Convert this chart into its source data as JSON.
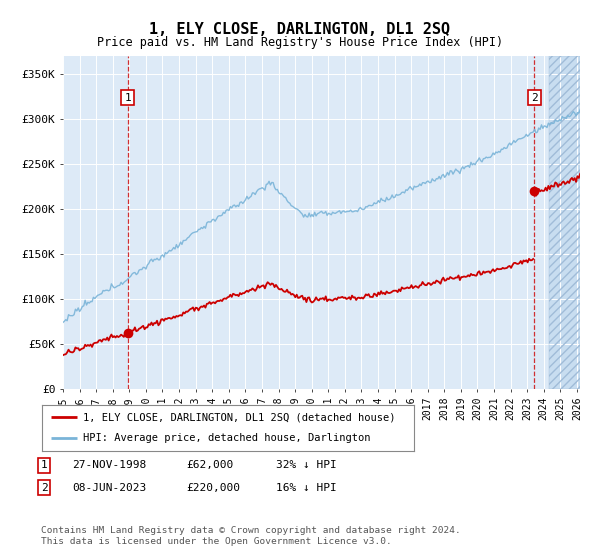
{
  "title": "1, ELY CLOSE, DARLINGTON, DL1 2SQ",
  "subtitle": "Price paid vs. HM Land Registry's House Price Index (HPI)",
  "footer": "Contains HM Land Registry data © Crown copyright and database right 2024.\nThis data is licensed under the Open Government Licence v3.0.",
  "legend_line1": "1, ELY CLOSE, DARLINGTON, DL1 2SQ (detached house)",
  "legend_line2": "HPI: Average price, detached house, Darlington",
  "sale1_date": "27-NOV-1998",
  "sale1_price": "£62,000",
  "sale1_hpi": "32% ↓ HPI",
  "sale2_date": "08-JUN-2023",
  "sale2_price": "£220,000",
  "sale2_hpi": "16% ↓ HPI",
  "hpi_color": "#7ab4d8",
  "price_color": "#cc0000",
  "marker_color": "#cc0000",
  "vline_color": "#cc0000",
  "background_color": "#ddeaf7",
  "ylim": [
    0,
    370000
  ],
  "yticks": [
    0,
    50000,
    100000,
    150000,
    200000,
    250000,
    300000,
    350000
  ],
  "ytick_labels": [
    "£0",
    "£50K",
    "£100K",
    "£150K",
    "£200K",
    "£250K",
    "£300K",
    "£350K"
  ],
  "sale1_x": 1998.9,
  "sale1_y": 62000,
  "sale2_x": 2023.44,
  "sale2_y": 220000,
  "xmin": 1995.0,
  "xmax": 2026.2,
  "hatch_start": 2024.3
}
